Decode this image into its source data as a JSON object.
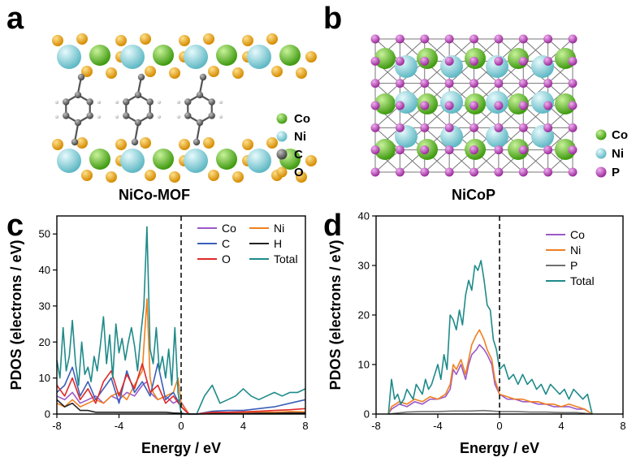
{
  "panels": {
    "a": {
      "label": "a",
      "title": "NiCo-MOF",
      "legend": [
        {
          "name": "Co",
          "color": "#5cc21c"
        },
        {
          "name": "Ni",
          "color": "#8fd8e0"
        },
        {
          "name": "C",
          "color": "#606060"
        },
        {
          "name": "O",
          "color": "#f2a200"
        }
      ]
    },
    "b": {
      "label": "b",
      "title": "NiCoP",
      "legend": [
        {
          "name": "Co",
          "color": "#5cc21c"
        },
        {
          "name": "Ni",
          "color": "#8fd8e0"
        },
        {
          "name": "P",
          "color": "#b040b0"
        }
      ]
    },
    "c": {
      "label": "c"
    },
    "d": {
      "label": "d"
    }
  },
  "chart_data": [
    {
      "id": "c",
      "type": "line",
      "xlabel": "Energy / eV",
      "ylabel": "PDOS (electrons / eV)",
      "xlim": [
        -8,
        8
      ],
      "ylim": [
        0,
        55
      ],
      "xticks": [
        -8,
        -4,
        0,
        4,
        8
      ],
      "yticks": [
        0,
        10,
        20,
        30,
        40,
        50
      ],
      "fermi_level": 0,
      "legend_position": "top-right",
      "series": [
        {
          "name": "Co",
          "color": "#9b59c8",
          "x": [
            -8,
            -7.5,
            -7,
            -6.5,
            -6,
            -5.5,
            -5,
            -4.5,
            -4,
            -3.5,
            -3,
            -2.5,
            -2.2,
            -2,
            -1.5,
            -1,
            -0.5,
            -0.1,
            0.5,
            1,
            2,
            3,
            4,
            5,
            6,
            7,
            8
          ],
          "y": [
            5,
            4,
            6,
            3,
            4,
            5,
            3,
            5,
            4,
            6,
            5,
            8,
            9,
            6,
            4,
            5,
            3,
            4,
            0,
            0,
            0.3,
            0.3,
            0.3,
            0.4,
            0.3,
            0.4,
            0.3
          ]
        },
        {
          "name": "Ni",
          "color": "#f08020",
          "x": [
            -8,
            -7.5,
            -7,
            -6.5,
            -6,
            -5.5,
            -5,
            -4.5,
            -4,
            -3.5,
            -3,
            -2.5,
            -2.2,
            -2,
            -1.8,
            -1.5,
            -1,
            -0.5,
            -0.2,
            0,
            0.5,
            1,
            2,
            3,
            4,
            5,
            6,
            7,
            8
          ],
          "y": [
            3,
            2,
            4,
            2,
            3,
            4,
            3,
            5,
            6,
            4,
            8,
            12,
            32,
            10,
            6,
            4,
            5,
            6,
            10,
            3,
            0,
            0,
            0.4,
            0.5,
            0.4,
            0.6,
            0.5,
            0.7,
            0.6
          ]
        },
        {
          "name": "C",
          "color": "#3a5fb8",
          "x": [
            -8,
            -7.5,
            -7,
            -6.5,
            -6,
            -5.5,
            -5,
            -4.5,
            -4,
            -3.5,
            -3,
            -2.5,
            -2,
            -1.5,
            -1,
            -0.5,
            0,
            0.5,
            1,
            2,
            3,
            4,
            5,
            6,
            7,
            8
          ],
          "y": [
            6,
            8,
            13,
            5,
            9,
            4,
            7,
            10,
            3,
            12,
            6,
            9,
            5,
            14,
            4,
            6,
            2,
            0,
            0,
            0.8,
            1,
            1,
            1.5,
            2,
            3,
            4
          ]
        },
        {
          "name": "H",
          "color": "#222222",
          "x": [
            -8,
            -7.5,
            -7,
            -6.5,
            -6,
            -5.5,
            -5,
            -4.5,
            -4,
            -3.5,
            -3,
            -2.5,
            -2,
            -1.5,
            -1,
            -0.5,
            0,
            0.5,
            1,
            2,
            3,
            4,
            5,
            6,
            7,
            8
          ],
          "y": [
            4,
            2,
            3,
            1,
            1,
            0.5,
            0.5,
            0.5,
            0.5,
            0.5,
            0.5,
            0.5,
            0.5,
            0.5,
            0.5,
            0.3,
            0.2,
            0,
            0,
            0.1,
            0.1,
            0.1,
            0.2,
            0.2,
            0.3,
            0.3
          ]
        },
        {
          "name": "O",
          "color": "#e02828",
          "x": [
            -8,
            -7.5,
            -7,
            -6.5,
            -6,
            -5.5,
            -5,
            -4.5,
            -4,
            -3.5,
            -3,
            -2.5,
            -2,
            -1.5,
            -1,
            -0.5,
            0,
            0.5,
            1,
            2,
            3,
            4,
            5,
            6,
            7,
            8
          ],
          "y": [
            8,
            5,
            10,
            4,
            7,
            3,
            9,
            12,
            5,
            11,
            7,
            14,
            6,
            8,
            3,
            5,
            2,
            0,
            0,
            0.5,
            0.5,
            0.6,
            0.8,
            1,
            1.2,
            1.5
          ]
        },
        {
          "name": "Total",
          "color": "#1f8a8a",
          "x": [
            -8,
            -7.8,
            -7.6,
            -7.4,
            -7.2,
            -7,
            -6.8,
            -6.6,
            -6.4,
            -6.2,
            -6,
            -5.8,
            -5.6,
            -5.4,
            -5.2,
            -5,
            -4.8,
            -4.6,
            -4.4,
            -4.2,
            -4,
            -3.8,
            -3.6,
            -3.4,
            -3.2,
            -3,
            -2.8,
            -2.6,
            -2.4,
            -2.2,
            -2,
            -1.8,
            -1.6,
            -1.4,
            -1.2,
            -1,
            -0.8,
            -0.6,
            -0.4,
            -0.2,
            0,
            0.5,
            1,
            1.5,
            2,
            2.5,
            3,
            3.5,
            4,
            4.5,
            5,
            5.5,
            6,
            6.5,
            7,
            7.5,
            8
          ],
          "y": [
            15,
            10,
            24,
            12,
            16,
            26,
            14,
            8,
            20,
            11,
            13,
            9,
            16,
            12,
            19,
            27,
            14,
            22,
            10,
            25,
            17,
            21,
            15,
            20,
            24,
            19,
            12,
            22,
            30,
            52,
            18,
            14,
            24,
            12,
            16,
            10,
            18,
            8,
            24,
            6,
            0,
            0,
            0,
            5,
            8,
            3,
            4,
            5,
            7,
            5,
            4,
            5,
            6,
            5,
            6,
            6,
            7
          ]
        }
      ]
    },
    {
      "id": "d",
      "type": "line",
      "xlabel": "Energy / eV",
      "ylabel": "PDOS (electrons / eV)",
      "xlim": [
        -8,
        8
      ],
      "ylim": [
        0,
        40
      ],
      "xticks": [
        -8,
        -4,
        0,
        4,
        8
      ],
      "yticks": [
        0,
        10,
        20,
        30,
        40
      ],
      "fermi_level": 0,
      "legend_position": "top-right",
      "series": [
        {
          "name": "Co",
          "color": "#9b59c8",
          "x": [
            -7.2,
            -7,
            -6.5,
            -6,
            -5.5,
            -5,
            -4.5,
            -4,
            -3.5,
            -3.2,
            -3,
            -2.8,
            -2.5,
            -2.2,
            -2,
            -1.8,
            -1.5,
            -1.3,
            -1,
            -0.8,
            -0.5,
            -0.3,
            0,
            0.5,
            1,
            1.5,
            2,
            2.5,
            3,
            3.5,
            4,
            4.5,
            5,
            5.5,
            6
          ],
          "y": [
            0,
            1,
            2,
            1.5,
            2.5,
            2,
            3,
            3,
            3.5,
            5,
            9,
            8,
            10,
            7,
            10,
            12,
            13,
            14,
            13,
            12,
            10,
            6,
            4,
            3,
            3,
            2.5,
            2.5,
            2,
            2,
            1.5,
            1.5,
            1.5,
            1,
            1,
            0
          ]
        },
        {
          "name": "Ni",
          "color": "#f08020",
          "x": [
            -7.2,
            -7,
            -6.5,
            -6,
            -5.5,
            -5,
            -4.5,
            -4,
            -3.5,
            -3.2,
            -3,
            -2.8,
            -2.5,
            -2.2,
            -2,
            -1.8,
            -1.5,
            -1.3,
            -1,
            -0.8,
            -0.5,
            -0.3,
            0,
            0.5,
            1,
            1.5,
            2,
            2.5,
            3,
            3.5,
            4,
            4.5,
            5,
            5.5,
            6
          ],
          "y": [
            0,
            1.5,
            2.5,
            2,
            3,
            2.5,
            3.5,
            3,
            4,
            6,
            10,
            9,
            11,
            8,
            11,
            14,
            16,
            17,
            15,
            13,
            11,
            7,
            4,
            3.5,
            3,
            3,
            2.5,
            2.5,
            2,
            2,
            1.5,
            2,
            1.5,
            1,
            0
          ]
        },
        {
          "name": "P",
          "color": "#707070",
          "x": [
            -7.2,
            -6,
            -5,
            -4,
            -3,
            -2,
            -1,
            0,
            1,
            2,
            3,
            4,
            5,
            6
          ],
          "y": [
            0,
            0.4,
            0.5,
            0.5,
            0.6,
            0.6,
            0.7,
            0.5,
            0.5,
            0.4,
            0.4,
            0.3,
            0.3,
            0
          ]
        },
        {
          "name": "Total",
          "color": "#1f8a8a",
          "x": [
            -7.2,
            -7,
            -6.8,
            -6.6,
            -6.4,
            -6.2,
            -6,
            -5.8,
            -5.6,
            -5.4,
            -5.2,
            -5,
            -4.8,
            -4.6,
            -4.4,
            -4.2,
            -4,
            -3.8,
            -3.6,
            -3.4,
            -3.2,
            -3,
            -2.8,
            -2.6,
            -2.4,
            -2.2,
            -2,
            -1.8,
            -1.6,
            -1.4,
            -1.2,
            -1,
            -0.8,
            -0.6,
            -0.4,
            -0.2,
            0,
            0.3,
            0.6,
            0.9,
            1.2,
            1.5,
            1.8,
            2.1,
            2.4,
            2.7,
            3,
            3.3,
            3.6,
            3.9,
            4.2,
            4.5,
            4.8,
            5.1,
            5.4,
            5.7,
            6
          ],
          "y": [
            0,
            7,
            3,
            4,
            2,
            3,
            5,
            4,
            3,
            6,
            5,
            4,
            7,
            5,
            6,
            8,
            10,
            7,
            12,
            9,
            20,
            19,
            17,
            21,
            18,
            24,
            27,
            25,
            30,
            29,
            31,
            27,
            22,
            21,
            15,
            13,
            9,
            10,
            7,
            8,
            6,
            8,
            6,
            7,
            5,
            6,
            4,
            6,
            5,
            4,
            5,
            3,
            5,
            4,
            3,
            4,
            0
          ]
        }
      ]
    }
  ]
}
